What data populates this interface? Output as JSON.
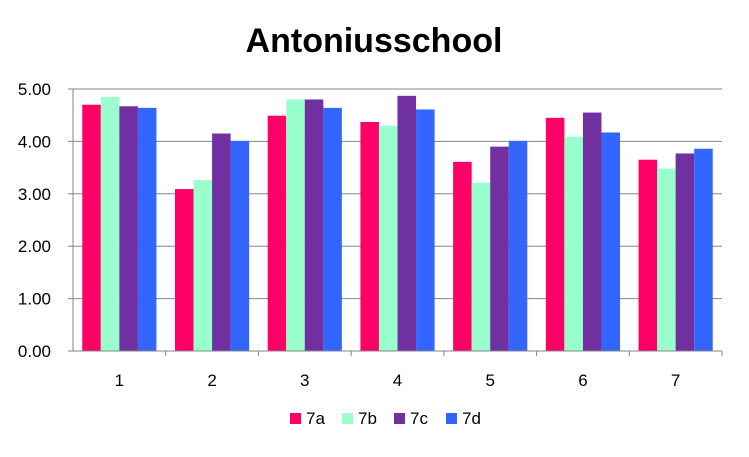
{
  "chart_data": {
    "type": "bar",
    "title": "Antoniusschool",
    "xlabel": "",
    "ylabel": "",
    "categories": [
      "1",
      "2",
      "3",
      "4",
      "5",
      "6",
      "7"
    ],
    "ylim": [
      0,
      5
    ],
    "yticks": [
      "0.00",
      "1.00",
      "2.00",
      "3.00",
      "4.00",
      "5.00"
    ],
    "grid": true,
    "legend_position": "bottom",
    "series": [
      {
        "name": "7a",
        "color": "#ff0066",
        "values": [
          4.7,
          3.09,
          4.49,
          4.37,
          3.61,
          4.45,
          3.65
        ]
      },
      {
        "name": "7b",
        "color": "#99ffcc",
        "values": [
          4.85,
          3.26,
          4.8,
          4.3,
          3.21,
          4.09,
          3.48
        ]
      },
      {
        "name": "7c",
        "color": "#7030a0",
        "values": [
          4.67,
          4.15,
          4.8,
          4.87,
          3.9,
          4.55,
          3.77
        ]
      },
      {
        "name": "7d",
        "color": "#3366ff",
        "values": [
          4.64,
          4.01,
          4.64,
          4.61,
          4.01,
          4.17,
          3.86
        ]
      }
    ]
  }
}
